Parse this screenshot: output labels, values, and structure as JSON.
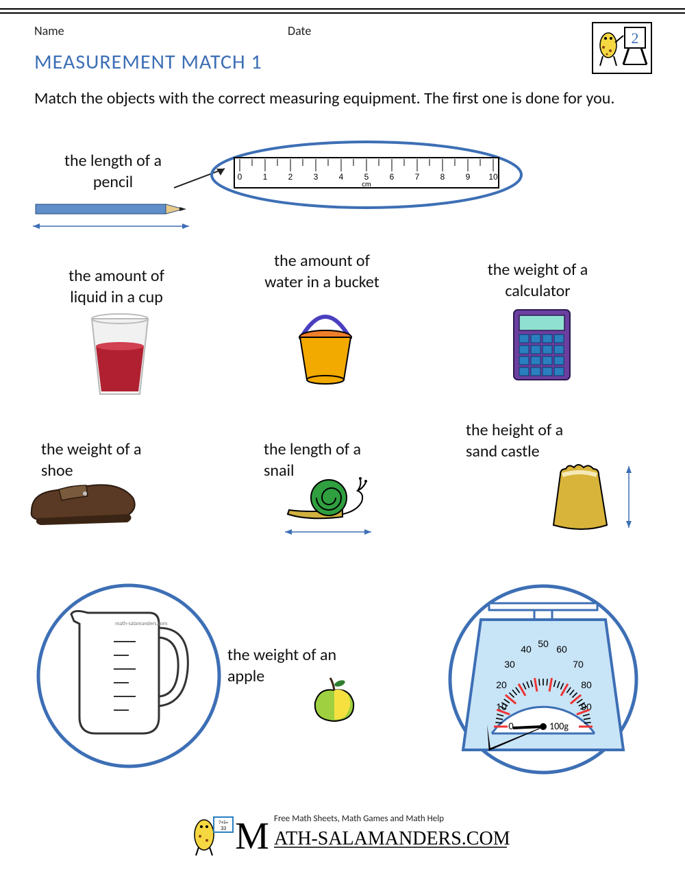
{
  "header": {
    "name_label": "Name",
    "date_label": "Date",
    "title": "MEASUREMENT MATCH 1",
    "title_color": "#3d6fb5",
    "grade_badge": "2"
  },
  "instructions": "Match the objects with the correct measuring equipment. The first one is done for you.",
  "items": {
    "pencil": {
      "label": "the length of a\npencil"
    },
    "ruler": {
      "ticks": [
        0,
        1,
        2,
        3,
        4,
        5,
        6,
        7,
        8,
        9,
        10
      ],
      "unit": "cm",
      "ellipse_color": "#3d6fb5"
    },
    "cup": {
      "label": "the amount of\nliquid in a cup"
    },
    "bucket": {
      "label": "the amount of\nwater in a bucket"
    },
    "calc": {
      "label": "the weight of a\ncalculator"
    },
    "shoe": {
      "label": "the weight of a\nshoe"
    },
    "snail": {
      "label": "the length of a\nsnail"
    },
    "castle": {
      "label": "the height of a\nsand castle"
    },
    "apple": {
      "label": "the weight of an\napple"
    },
    "jug": {
      "watermark": "math-salamanders.com",
      "circle_color": "#3d6fb5"
    },
    "scale": {
      "labels": [
        0,
        10,
        20,
        30,
        40,
        50,
        60,
        70,
        80,
        90
      ],
      "unit": "100g",
      "circle_color": "#3d6fb5"
    }
  },
  "colors": {
    "blue": "#3d6fb5",
    "pencil_blue": "#5f8ec9",
    "bucket_orange": "#f2a900",
    "bucket_handle": "#4a3fbf",
    "bucket_inner": "#f07f2a",
    "calc_purple": "#6b3fa0",
    "calc_teal": "#8fe0d0",
    "calc_blue": "#2a7fbf",
    "snail_green": "#2f9f3f",
    "snail_body": "#d0b040",
    "castle": "#d8b43a",
    "castle_top": "#f6e9b8",
    "apple_green": "#9fd040",
    "apple_yellow": "#f6e040",
    "cup_liquid": "#b02030",
    "shoe": "#5a3a24",
    "scale_body": "#c8e4f7",
    "scale_edge": "#3d6fb5",
    "red_tick": "#e33"
  },
  "footer": {
    "tagline": "Free Math Sheets, Math Games and Math Help",
    "logo_text": "ATH-SALAMANDERS.COM"
  }
}
